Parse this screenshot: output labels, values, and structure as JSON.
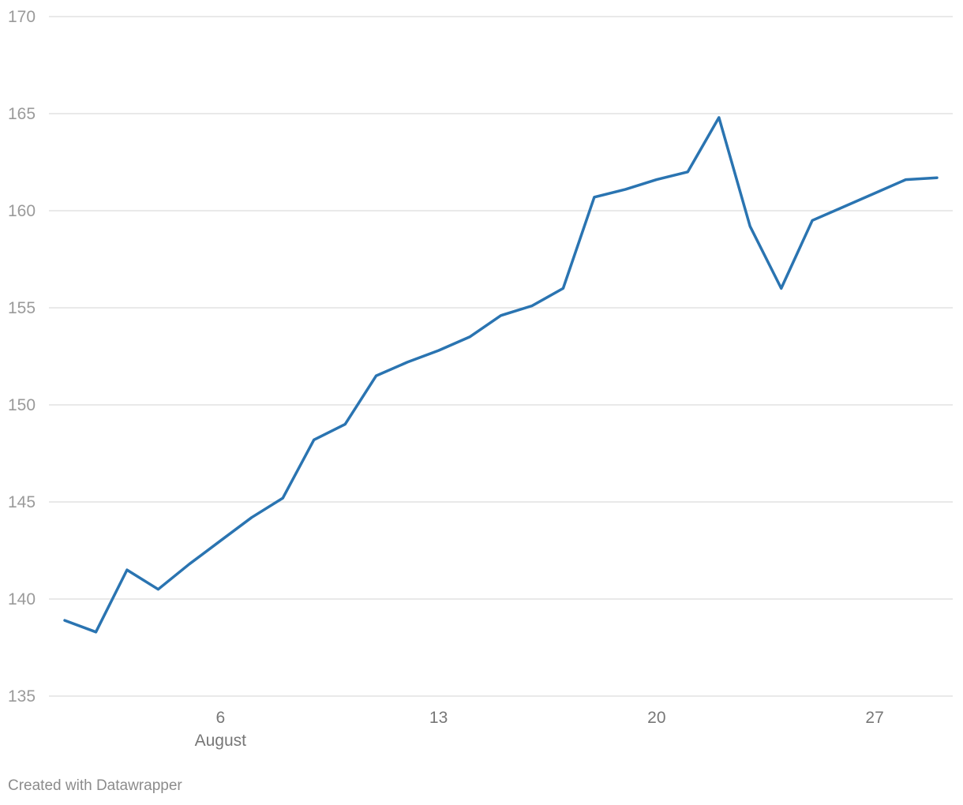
{
  "chart_data": {
    "type": "line",
    "title": "",
    "xlabel": "",
    "ylabel": "",
    "x": [
      "2022-08-01",
      "2022-08-02",
      "2022-08-03",
      "2022-08-04",
      "2022-08-05",
      "2022-08-06",
      "2022-08-07",
      "2022-08-08",
      "2022-08-09",
      "2022-08-10",
      "2022-08-11",
      "2022-08-12",
      "2022-08-13",
      "2022-08-14",
      "2022-08-15",
      "2022-08-16",
      "2022-08-17",
      "2022-08-18",
      "2022-08-19",
      "2022-08-20",
      "2022-08-21",
      "2022-08-22",
      "2022-08-23",
      "2022-08-24",
      "2022-08-25",
      "2022-08-26",
      "2022-08-27",
      "2022-08-28",
      "2022-08-29"
    ],
    "series": [
      {
        "color": "#2a74b1",
        "values": [
          138.9,
          138.3,
          141.5,
          140.5,
          141.8,
          143.0,
          144.2,
          145.2,
          148.2,
          149.0,
          151.5,
          152.2,
          152.8,
          153.5,
          154.6,
          155.1,
          156.0,
          160.7,
          161.1,
          161.6,
          162.0,
          164.8,
          159.2,
          156.0,
          159.5,
          160.2,
          160.9,
          161.6,
          161.7
        ]
      }
    ],
    "ylim": [
      135,
      170
    ],
    "yticks": [
      "135",
      "140",
      "145",
      "150",
      "155",
      "160",
      "165",
      "170"
    ],
    "xticks": [
      {
        "x": "2022-08-06",
        "label": "6",
        "sublabel": "August"
      },
      {
        "x": "2022-08-13",
        "label": "13",
        "sublabel": ""
      },
      {
        "x": "2022-08-20",
        "label": "20",
        "sublabel": ""
      },
      {
        "x": "2022-08-27",
        "label": "27",
        "sublabel": ""
      }
    ],
    "grid": true
  },
  "footer": {
    "credit": "Created with Datawrapper"
  }
}
